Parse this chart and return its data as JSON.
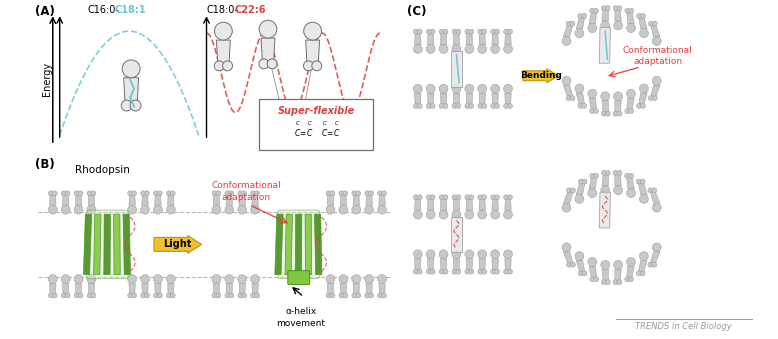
{
  "bg_color": "#ffffff",
  "label_A": "(A)",
  "label_B": "(B)",
  "label_C": "(C)",
  "c16_label": "C16:0-",
  "c18_1_label": "C18:1",
  "c18_0_label": "C18:0-",
  "c22_6_label": "C22:6",
  "energy_label": "Energy",
  "rhodopsin_label": "Rhodopsin",
  "conf_adapt_B": "Conformational\nadaptation",
  "conf_adapt_C": "Conformational\nadaptation",
  "super_flex_label": "Super-flexible",
  "alpha_helix_label": "α-helix\nmovement",
  "light_label": "Light",
  "bending_label": "Bending",
  "trends_label": "TRENDS in Cell Biology",
  "cyan_color": "#68c8d0",
  "red_color": "#e04040",
  "green_dark": "#4a9020",
  "green_mid": "#80c840",
  "green_light": "#b8e878",
  "yellow_color": "#f0c030",
  "yellow_dark": "#c09010",
  "gray_lipid": "#c8c8c8",
  "gray_protein": "#b0b0b0",
  "dark_gray": "#707070",
  "mid_gray": "#999999",
  "light_gray_bg": "#e8e8e8"
}
